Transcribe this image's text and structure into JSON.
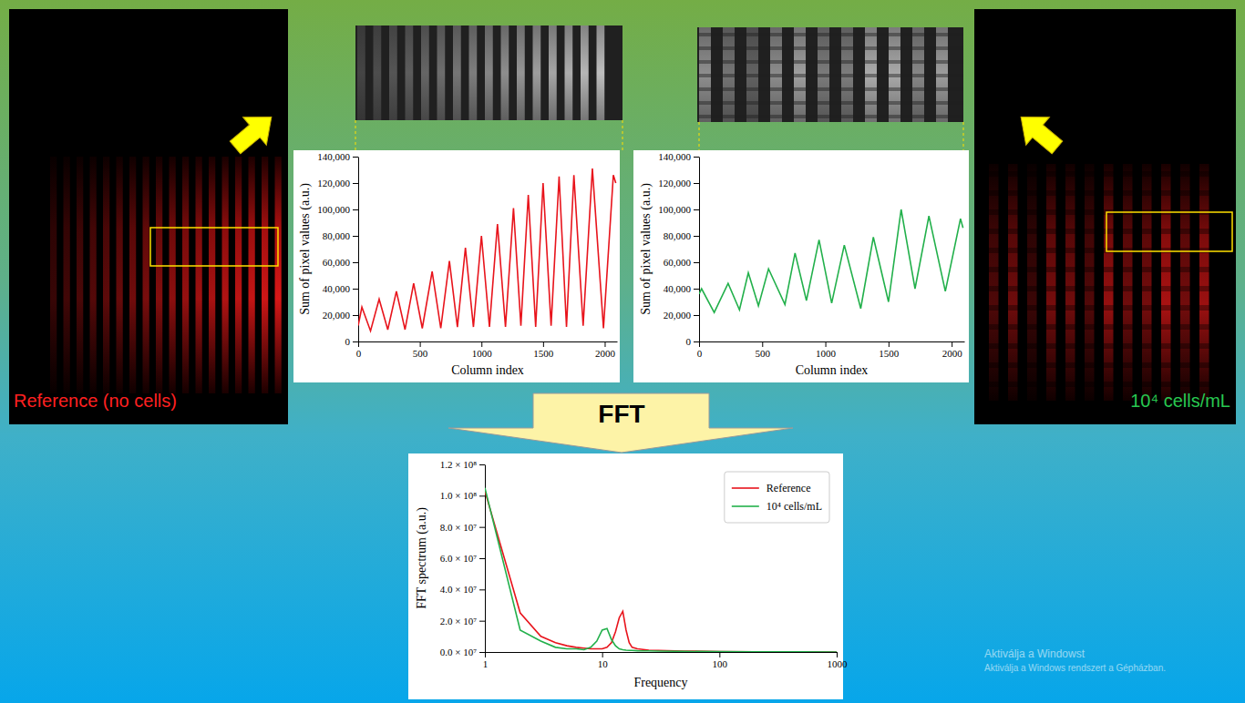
{
  "chart_data": [
    {
      "type": "line",
      "xlabel": "Column index",
      "ylabel": "Sum of pixel values (a.u.)",
      "xlim": [
        0,
        2100
      ],
      "xticks": [
        0,
        500,
        1000,
        1500,
        2000
      ],
      "ylim": [
        0,
        140000
      ],
      "yticks": [
        0,
        {
          "value": 20000,
          "label": "20,000"
        },
        {
          "value": 40000,
          "label": "40,000"
        },
        {
          "value": 60000,
          "label": "60,000"
        },
        {
          "value": 80000,
          "label": "80,000"
        },
        {
          "value": 100000,
          "label": "100,000"
        },
        {
          "value": 120000,
          "label": "120,000"
        },
        {
          "value": 140000,
          "label": "140,000"
        }
      ],
      "grid": false,
      "x": [
        0,
        30,
        100,
        170,
        240,
        310,
        380,
        450,
        520,
        600,
        670,
        740,
        805,
        870,
        935,
        1000,
        1065,
        1130,
        1195,
        1260,
        1320,
        1380,
        1440,
        1500,
        1565,
        1630,
        1690,
        1750,
        1825,
        1900,
        1990,
        2070,
        2090
      ],
      "series": [
        {
          "color": "#e8141c",
          "values": [
            12000,
            26000,
            8000,
            32000,
            9000,
            38000,
            9000,
            44000,
            10000,
            53000,
            10000,
            61000,
            11000,
            71000,
            11000,
            80000,
            11000,
            89000,
            11000,
            101000,
            12000,
            111000,
            11000,
            120000,
            12000,
            125000,
            11000,
            126000,
            12000,
            131000,
            10000,
            126000,
            120000
          ]
        }
      ]
    },
    {
      "type": "line",
      "xlabel": "Column index",
      "ylabel": "Sum of pixel values (a.u.)",
      "xlim": [
        0,
        2100
      ],
      "xticks": [
        0,
        500,
        1000,
        1500,
        2000
      ],
      "ylim": [
        0,
        140000
      ],
      "yticks": [
        0,
        {
          "value": 20000,
          "label": "20,000"
        },
        {
          "value": 40000,
          "label": "40,000"
        },
        {
          "value": 60000,
          "label": "60,000"
        },
        {
          "value": 80000,
          "label": "80,000"
        },
        {
          "value": 100000,
          "label": "100,000"
        },
        {
          "value": 120000,
          "label": "120,000"
        },
        {
          "value": 140000,
          "label": "140,000"
        }
      ],
      "grid": false,
      "x": [
        0,
        20,
        120,
        230,
        320,
        390,
        470,
        550,
        680,
        760,
        850,
        950,
        1050,
        1150,
        1280,
        1380,
        1500,
        1600,
        1710,
        1820,
        1950,
        2070,
        2090
      ],
      "series": [
        {
          "color": "#22b04b",
          "values": [
            36000,
            40000,
            22000,
            44000,
            24000,
            52000,
            27000,
            55000,
            28000,
            67000,
            31000,
            77000,
            29000,
            73000,
            25000,
            79000,
            30000,
            100000,
            40000,
            95000,
            38000,
            93000,
            86000
          ]
        }
      ]
    },
    {
      "type": "line",
      "xlabel": "Frequency",
      "ylabel": "FFT spectrum (a.u.)",
      "log": "x",
      "grid": false,
      "legend": "upper right",
      "xlim": [
        1,
        1000
      ],
      "xticks": [
        1,
        10,
        100,
        1000
      ],
      "ylim": [
        0,
        120000000
      ],
      "yticks": [
        {
          "value": 0,
          "label": "0.0 × 10⁷"
        },
        {
          "value": 20000000,
          "label": "2.0 × 10⁷"
        },
        {
          "value": 40000000,
          "label": "4.0 × 10⁷"
        },
        {
          "value": 60000000,
          "label": "6.0 × 10⁷"
        },
        {
          "value": 80000000,
          "label": "8.0 × 10⁷"
        },
        {
          "value": 100000000,
          "label": "1.0 × 10⁸"
        },
        {
          "value": 120000000,
          "label": "1.2 × 10⁸"
        }
      ],
      "x": [
        1,
        2,
        3,
        4,
        5,
        6,
        7,
        8,
        9,
        10,
        11,
        12,
        13,
        14,
        15,
        16,
        17,
        18,
        20,
        25,
        30,
        50,
        100,
        200,
        500,
        1000
      ],
      "series": [
        {
          "name": "Reference",
          "color": "#e8141c",
          "values": [
            103000000,
            25000000,
            10000000,
            6000000,
            4000000,
            3000000,
            2500000,
            2000000,
            2000000,
            2000000,
            3000000,
            6000000,
            13000000,
            22000000,
            26000000,
            14000000,
            6000000,
            3000000,
            2000000,
            1200000,
            1000000,
            600000,
            300000,
            100000,
            50000,
            0
          ]
        },
        {
          "name": "10⁴ cells/mL",
          "color": "#22b04b",
          "values": [
            105000000,
            14000000,
            7000000,
            3000000,
            2000000,
            2000000,
            1500000,
            3000000,
            7000000,
            14000000,
            15000000,
            8000000,
            4000000,
            2000000,
            1500000,
            1200000,
            1000000,
            1000000,
            800000,
            700000,
            600000,
            400000,
            200000,
            100000,
            50000,
            0
          ]
        }
      ]
    }
  ],
  "slide": {
    "reference_label": "Reference (no cells)",
    "cells_label": "10⁴ cells/mL",
    "fft_label": "FFT",
    "watermark": [
      "Aktiválja a Windowst",
      "Aktiválja a Windows rendszert a Gépházban."
    ]
  }
}
